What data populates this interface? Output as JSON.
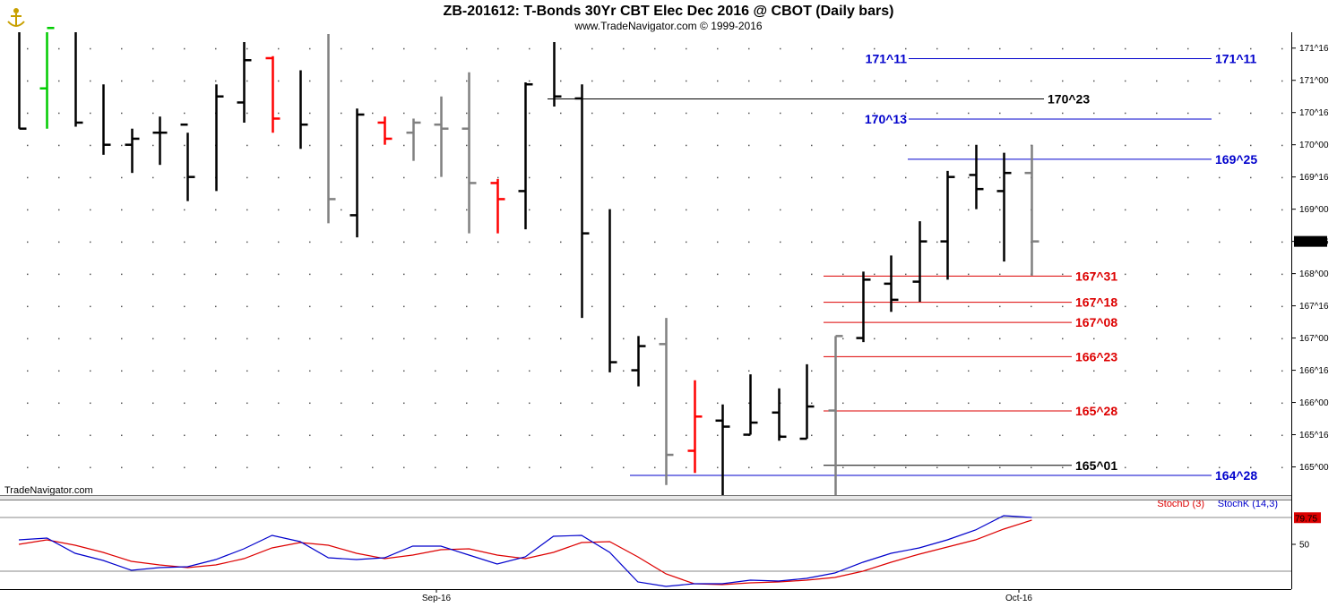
{
  "header": {
    "title": "ZB-201612:  T-Bonds 30Yr CBT Elec Dec 2016 @ CBOT  (Daily bars)",
    "subtitle": "www.TradeNavigator.com © 1999-2016",
    "watermark": "TradeNavigator.com"
  },
  "colors": {
    "up": "#000000",
    "flat": "#808080",
    "red": "#ff0000",
    "green": "#00cc00",
    "blue_level": "#0000cc",
    "red_level": "#dd0000",
    "black_level": "#000000",
    "stochD": "#dd0000",
    "stochK": "#0000cc",
    "last_price_bg": "#000000",
    "stoch_value_bg": "#dd0000"
  },
  "chart_data": {
    "type": "ohlc",
    "price_unit": "32nds",
    "y_ticks": [
      "171^16",
      "171^00",
      "170^16",
      "170^00",
      "169^16",
      "169^00",
      "168^16",
      "168^00",
      "167^16",
      "167^00",
      "166^16",
      "166^00",
      "165^16",
      "165^00"
    ],
    "y_range": [
      "164^18",
      "171^23"
    ],
    "x_tick_labels": [
      "Sep-16",
      "Oct-16"
    ],
    "last_price_label": "168^16",
    "bars": [
      {
        "h": "171^26",
        "l": "170^08",
        "o": null,
        "c": "170^08",
        "color": "black"
      },
      {
        "h": "171^26",
        "l": "170^08",
        "o": "170^28",
        "c": "171^26",
        "color": "green"
      },
      {
        "h": "171^26",
        "l": "170^09",
        "o": null,
        "c": "170^11",
        "color": "black"
      },
      {
        "h": "170^30",
        "l": "169^27",
        "o": null,
        "c": "170^00",
        "color": "black"
      },
      {
        "h": "170^08",
        "l": "169^18",
        "o": "170^00",
        "c": "170^03",
        "color": "black"
      },
      {
        "h": "170^14",
        "l": "169^22",
        "o": "170^06",
        "c": "170^06",
        "color": "black"
      },
      {
        "h": "170^06",
        "l": "169^04",
        "o": "170^10",
        "c": "169^16",
        "color": "black"
      },
      {
        "h": "170^30",
        "l": "169^09",
        "o": null,
        "c": "170^24",
        "color": "black"
      },
      {
        "h": "171^19",
        "l": "170^11",
        "o": "170^21",
        "c": "171^10",
        "color": "black"
      },
      {
        "h": "171^12",
        "l": "170^06",
        "o": "171^11",
        "c": "170^13",
        "color": "red"
      },
      {
        "h": "171^05",
        "l": "169^30",
        "o": null,
        "c": "170^10",
        "color": "black"
      },
      {
        "h": "171^23",
        "l": "168^25",
        "o": null,
        "c": "169^05",
        "color": "gray"
      },
      {
        "h": "170^18",
        "l": "168^18",
        "o": "168^29",
        "c": "170^15",
        "color": "black"
      },
      {
        "h": "170^14",
        "l": "170^00",
        "o": "170^11",
        "c": "170^03",
        "color": "red"
      },
      {
        "h": "170^13",
        "l": "169^24",
        "o": "170^06",
        "c": "170^11",
        "color": "gray"
      },
      {
        "h": "170^24",
        "l": "169^16",
        "o": "170^10",
        "c": "170^08",
        "color": "gray"
      },
      {
        "h": "171^04",
        "l": "168^20",
        "o": "170^08",
        "c": "169^13",
        "color": "gray"
      },
      {
        "h": "169^15",
        "l": "168^20",
        "o": "169^13",
        "c": "169^05",
        "color": "red"
      },
      {
        "h": "170^31",
        "l": "168^22",
        "o": "169^09",
        "c": "170^30",
        "color": "black"
      },
      {
        "h": "171^19",
        "l": "170^19",
        "o": null,
        "c": "170^24",
        "color": "black"
      },
      {
        "h": "170^30",
        "l": "167^10",
        "o": "170^23",
        "c": "168^20",
        "color": "black"
      },
      {
        "h": "169^00",
        "l": "166^15",
        "o": null,
        "c": "166^20",
        "color": "black"
      },
      {
        "h": "167^01",
        "l": "166^08",
        "o": "166^16",
        "c": "166^28",
        "color": "black"
      },
      {
        "h": "167^10",
        "l": "164^23",
        "o": "166^29",
        "c": "165^06",
        "color": "gray"
      },
      {
        "h": "166^11",
        "l": "164^29",
        "o": "165^08",
        "c": "165^25",
        "color": "red"
      },
      {
        "h": "165^31",
        "l": "164^16",
        "o": "165^23",
        "c": "165^20",
        "color": "black"
      },
      {
        "h": "166^14",
        "l": "165^16",
        "o": "165^16",
        "c": "165^22",
        "color": "black"
      },
      {
        "h": "166^07",
        "l": "165^13",
        "o": "165^27",
        "c": "165^15",
        "color": "black"
      },
      {
        "h": "166^19",
        "l": "165^14",
        "o": "165^14",
        "c": "165^30",
        "color": "black"
      },
      {
        "h": "167^01",
        "l": "164^18",
        "o": "165^28",
        "c": "167^01",
        "color": "gray"
      },
      {
        "h": "168^01",
        "l": "166^30",
        "o": "167^00",
        "c": "167^29",
        "color": "black"
      },
      {
        "h": "168^09",
        "l": "167^13",
        "o": "167^27",
        "c": "167^19",
        "color": "black"
      },
      {
        "h": "168^26",
        "l": "167^18",
        "o": "167^28",
        "c": "168^16",
        "color": "black"
      },
      {
        "h": "169^19",
        "l": "167^29",
        "o": "168^16",
        "c": "169^16",
        "color": "black"
      },
      {
        "h": "170^00",
        "l": "169^00",
        "o": "169^17",
        "c": "169^10",
        "color": "black"
      },
      {
        "h": "169^28",
        "l": "168^06",
        "o": "169^09",
        "c": "169^18",
        "color": "black"
      },
      {
        "h": "170^00",
        "l": "167^31",
        "o": "169^18",
        "c": "168^16",
        "color": "gray"
      }
    ],
    "levels": [
      {
        "label": "171^11",
        "color": "blue",
        "label_side": "both"
      },
      {
        "label": "170^23",
        "color": "black",
        "label_side": "right"
      },
      {
        "label": "170^13",
        "color": "blue",
        "label_side": "left"
      },
      {
        "label": "169^25",
        "color": "blue",
        "label_side": "right"
      },
      {
        "label": "167^31",
        "color": "red",
        "label_side": "right"
      },
      {
        "label": "167^18",
        "color": "red",
        "label_side": "right"
      },
      {
        "label": "167^08",
        "color": "red",
        "label_side": "right"
      },
      {
        "label": "166^23",
        "color": "red",
        "label_side": "right"
      },
      {
        "label": "165^28",
        "color": "red",
        "label_side": "right"
      },
      {
        "label": "165^01",
        "color": "black",
        "label_side": "right"
      },
      {
        "label": "164^28",
        "color": "blue",
        "label_side": "right"
      }
    ],
    "stochastic": {
      "labels": {
        "d": "StochD (3)",
        "k": "StochK (14,3)"
      },
      "y_tick": "50",
      "y_range": [
        0,
        100
      ],
      "guide_lines": [
        80,
        20
      ],
      "last_value_label": "79.75",
      "k": [
        55,
        57,
        40,
        32,
        21,
        24,
        25,
        33,
        45,
        60,
        53,
        35,
        33,
        35,
        48,
        48,
        38,
        28,
        36,
        59,
        60,
        41,
        8,
        3,
        6,
        6,
        10,
        9,
        12,
        18,
        30,
        40,
        46,
        55,
        66,
        82,
        80
      ],
      "d": [
        50,
        55,
        49,
        41,
        31,
        27,
        24,
        27,
        34,
        46,
        52,
        49,
        40,
        34,
        38,
        44,
        45,
        38,
        34,
        41,
        52,
        53,
        36,
        17,
        6,
        5,
        7,
        8,
        10,
        13,
        20,
        30,
        39,
        47,
        55,
        67,
        77
      ]
    }
  }
}
